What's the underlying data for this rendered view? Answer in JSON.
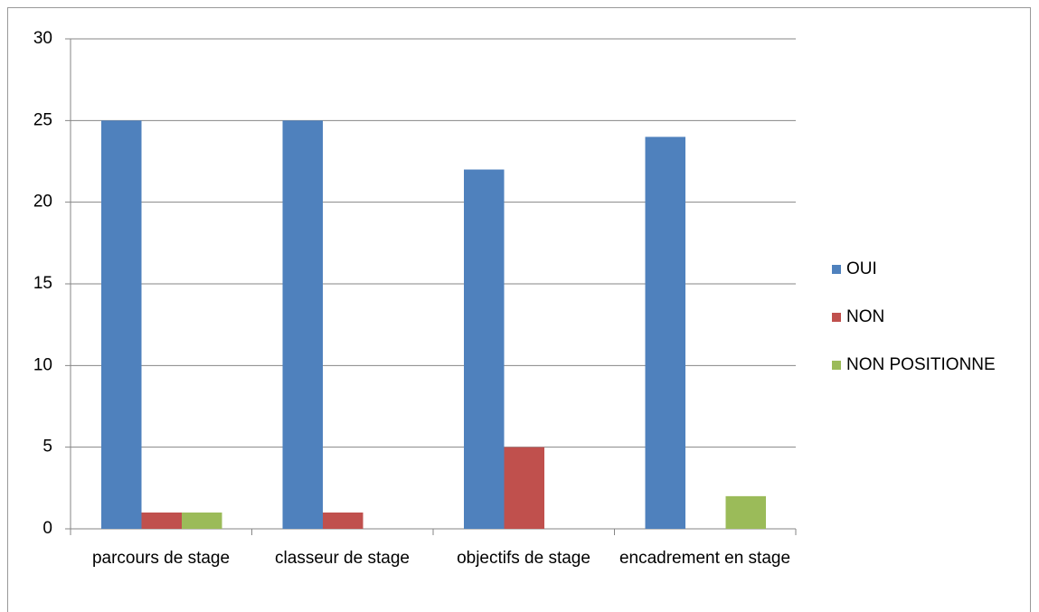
{
  "chart_data": {
    "type": "bar",
    "categories": [
      "parcours de stage",
      "classeur de stage",
      "objectifs de stage",
      "encadrement en stage"
    ],
    "series": [
      {
        "name": "OUI",
        "color": "#4f81bd",
        "values": [
          25,
          25,
          22,
          24
        ]
      },
      {
        "name": "NON",
        "color": "#c0504d",
        "values": [
          1,
          1,
          5,
          0
        ]
      },
      {
        "name": "NON POSITIONNE",
        "color": "#9bbb59",
        "values": [
          1,
          0,
          0,
          2
        ]
      }
    ],
    "ylim": [
      0,
      30
    ],
    "yticks": [
      0,
      5,
      10,
      15,
      20,
      25,
      30
    ],
    "grid": true,
    "legend": "right"
  }
}
